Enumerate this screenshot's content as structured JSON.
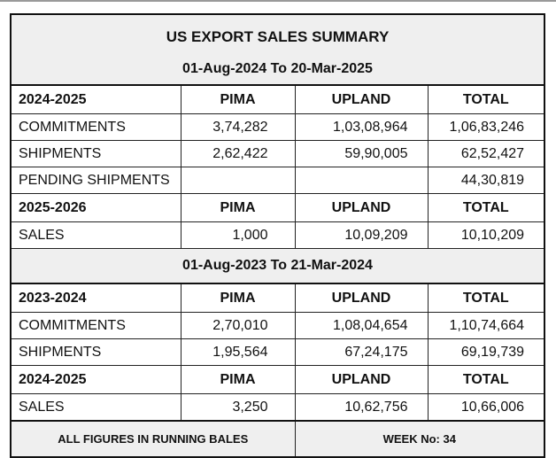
{
  "title": "US EXPORT SALES SUMMARY",
  "current": {
    "period": "01-Aug-2024 To 20-Mar-2025",
    "season": {
      "label": "2024-2025",
      "columns": [
        "PIMA",
        "UPLAND",
        "TOTAL"
      ],
      "rows": [
        {
          "label": "COMMITMENTS",
          "pima": "3,74,282",
          "upland": "1,03,08,964",
          "total": "1,06,83,246"
        },
        {
          "label": "SHIPMENTS",
          "pima": "2,62,422",
          "upland": "59,90,005",
          "total": "62,52,427"
        },
        {
          "label": "PENDING SHIPMENTS",
          "pima": "",
          "upland": "",
          "total": "44,30,819"
        }
      ]
    },
    "next_season": {
      "label": "2025-2026",
      "columns": [
        "PIMA",
        "UPLAND",
        "TOTAL"
      ],
      "rows": [
        {
          "label": "SALES",
          "pima": "1,000",
          "upland": "10,09,209",
          "total": "10,10,209"
        }
      ]
    }
  },
  "previous": {
    "period": "01-Aug-2023 To 21-Mar-2024",
    "season": {
      "label": "2023-2024",
      "columns": [
        "PIMA",
        "UPLAND",
        "TOTAL"
      ],
      "rows": [
        {
          "label": "COMMITMENTS",
          "pima": "2,70,010",
          "upland": "1,08,04,654",
          "total": "1,10,74,664"
        },
        {
          "label": "SHIPMENTS",
          "pima": "1,95,564",
          "upland": "67,24,175",
          "total": "69,19,739"
        }
      ]
    },
    "next_season": {
      "label": "2024-2025",
      "columns": [
        "PIMA",
        "UPLAND",
        "TOTAL"
      ],
      "rows": [
        {
          "label": "SALES",
          "pima": "3,250",
          "upland": "10,62,756",
          "total": "10,66,006"
        }
      ]
    }
  },
  "footer": {
    "note": "ALL FIGURES IN RUNNING BALES",
    "week": "WEEK No: 34"
  }
}
